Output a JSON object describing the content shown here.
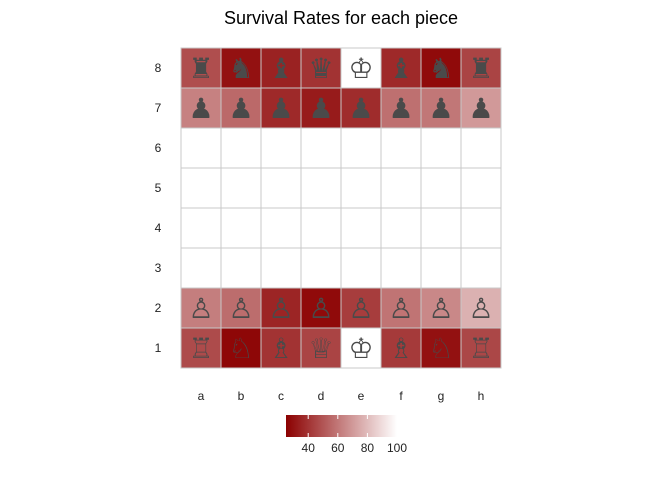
{
  "chart_data": {
    "type": "heatmap",
    "title": "Survival Rates for each piece",
    "files": [
      "a",
      "b",
      "c",
      "d",
      "e",
      "f",
      "g",
      "h"
    ],
    "ranks": [
      "8",
      "7",
      "6",
      "5",
      "4",
      "3",
      "2",
      "1"
    ],
    "color_scale": {
      "low": "#8b0000",
      "high": "#ffffff",
      "domain": [
        25,
        100
      ]
    },
    "legend": {
      "ticks": [
        "40",
        "60",
        "80",
        "100"
      ],
      "tick_values": [
        40,
        60,
        80,
        100
      ],
      "placement": "bottom"
    },
    "cells": [
      {
        "file": "a",
        "rank": "8",
        "piece": "rook-icon",
        "glyph": "♜",
        "value": 48
      },
      {
        "file": "b",
        "rank": "8",
        "piece": "knight-icon",
        "glyph": "♞",
        "value": 30
      },
      {
        "file": "c",
        "rank": "8",
        "piece": "bishop-icon",
        "glyph": "♝",
        "value": 35
      },
      {
        "file": "d",
        "rank": "8",
        "piece": "queen-icon",
        "glyph": "♛",
        "value": 40
      },
      {
        "file": "e",
        "rank": "8",
        "piece": "king-icon",
        "glyph": "♔",
        "value": 100
      },
      {
        "file": "f",
        "rank": "8",
        "piece": "bishop-icon",
        "glyph": "♝",
        "value": 37
      },
      {
        "file": "g",
        "rank": "8",
        "piece": "knight-icon",
        "glyph": "♞",
        "value": 28
      },
      {
        "file": "h",
        "rank": "8",
        "piece": "rook-icon",
        "glyph": "♜",
        "value": 45
      },
      {
        "file": "a",
        "rank": "7",
        "piece": "pawn-icon",
        "glyph": "♟",
        "value": 63
      },
      {
        "file": "b",
        "rank": "7",
        "piece": "pawn-icon",
        "glyph": "♟",
        "value": 56
      },
      {
        "file": "c",
        "rank": "7",
        "piece": "pawn-icon",
        "glyph": "♟",
        "value": 37
      },
      {
        "file": "d",
        "rank": "7",
        "piece": "pawn-icon",
        "glyph": "♟",
        "value": 33
      },
      {
        "file": "e",
        "rank": "7",
        "piece": "pawn-icon",
        "glyph": "♟",
        "value": 38
      },
      {
        "file": "f",
        "rank": "7",
        "piece": "pawn-icon",
        "glyph": "♟",
        "value": 58
      },
      {
        "file": "g",
        "rank": "7",
        "piece": "pawn-icon",
        "glyph": "♟",
        "value": 60
      },
      {
        "file": "h",
        "rank": "7",
        "piece": "pawn-icon",
        "glyph": "♟",
        "value": 70
      },
      {
        "file": "a",
        "rank": "2",
        "piece": "pawn-icon",
        "glyph": "♙",
        "value": 62
      },
      {
        "file": "b",
        "rank": "2",
        "piece": "pawn-icon",
        "glyph": "♙",
        "value": 57
      },
      {
        "file": "c",
        "rank": "2",
        "piece": "pawn-icon",
        "glyph": "♙",
        "value": 36
      },
      {
        "file": "d",
        "rank": "2",
        "piece": "pawn-icon",
        "glyph": "♙",
        "value": 28
      },
      {
        "file": "e",
        "rank": "2",
        "piece": "pawn-icon",
        "glyph": "♙",
        "value": 43
      },
      {
        "file": "f",
        "rank": "2",
        "piece": "pawn-icon",
        "glyph": "♙",
        "value": 59
      },
      {
        "file": "g",
        "rank": "2",
        "piece": "pawn-icon",
        "glyph": "♙",
        "value": 65
      },
      {
        "file": "h",
        "rank": "2",
        "piece": "pawn-icon",
        "glyph": "♙",
        "value": 77
      },
      {
        "file": "a",
        "rank": "1",
        "piece": "rook-icon",
        "glyph": "♖",
        "value": 47
      },
      {
        "file": "b",
        "rank": "1",
        "piece": "knight-icon",
        "glyph": "♘",
        "value": 27
      },
      {
        "file": "c",
        "rank": "1",
        "piece": "bishop-icon",
        "glyph": "♗",
        "value": 40
      },
      {
        "file": "d",
        "rank": "1",
        "piece": "queen-icon",
        "glyph": "♕",
        "value": 45
      },
      {
        "file": "e",
        "rank": "1",
        "piece": "king-icon",
        "glyph": "♔",
        "value": 100
      },
      {
        "file": "f",
        "rank": "1",
        "piece": "bishop-icon",
        "glyph": "♗",
        "value": 42
      },
      {
        "file": "g",
        "rank": "1",
        "piece": "knight-icon",
        "glyph": "♘",
        "value": 30
      },
      {
        "file": "h",
        "rank": "1",
        "piece": "rook-icon",
        "glyph": "♖",
        "value": 46
      }
    ]
  }
}
